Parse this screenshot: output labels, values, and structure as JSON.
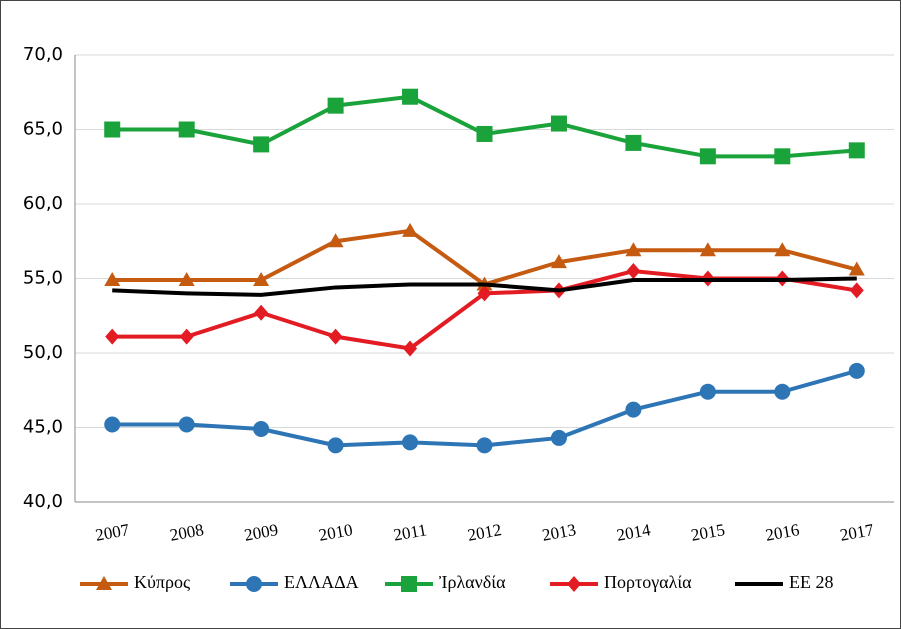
{
  "chart_data": {
    "type": "line",
    "categories": [
      "2007",
      "2008",
      "2009",
      "2010",
      "2011",
      "2012",
      "2013",
      "2014",
      "2015",
      "2016",
      "2017"
    ],
    "series": [
      {
        "name": "Κύπρος",
        "color": "#c55a11",
        "marker": "triangle",
        "values": [
          54.9,
          54.9,
          54.9,
          57.5,
          58.2,
          54.6,
          56.1,
          56.9,
          56.9,
          56.9,
          55.6
        ]
      },
      {
        "name": "ΕΛΛΑΔΑ",
        "color": "#2e75b6",
        "marker": "circle",
        "values": [
          45.2,
          45.2,
          44.9,
          43.8,
          44.0,
          43.8,
          44.3,
          46.2,
          47.4,
          47.4,
          48.8
        ]
      },
      {
        "name": "Ἰρλανδία",
        "color": "#1aa33a",
        "marker": "square",
        "values": [
          65.0,
          65.0,
          64.0,
          66.6,
          67.2,
          64.7,
          65.4,
          64.1,
          63.2,
          63.2,
          63.6
        ]
      },
      {
        "name": "Πορτογαλία",
        "color": "#e31b23",
        "marker": "diamond",
        "values": [
          51.1,
          51.1,
          52.7,
          51.1,
          50.3,
          54.0,
          54.2,
          55.5,
          55.0,
          55.0,
          54.2
        ]
      },
      {
        "name": "ΕΕ 28",
        "color": "#000000",
        "marker": "none",
        "values": [
          54.2,
          54.0,
          53.9,
          54.4,
          54.6,
          54.6,
          54.2,
          54.9,
          54.9,
          54.9,
          55.0
        ]
      }
    ],
    "ylim": [
      40,
      70
    ],
    "yticks": [
      {
        "value": 40,
        "label": "40,0"
      },
      {
        "value": 45,
        "label": "45,0"
      },
      {
        "value": 50,
        "label": "50,0"
      },
      {
        "value": 55,
        "label": "55,0"
      },
      {
        "value": 60,
        "label": "60,0"
      },
      {
        "value": 65,
        "label": "65,0"
      },
      {
        "value": 70,
        "label": "70,0"
      }
    ],
    "grid": true,
    "legend": "bottom"
  }
}
